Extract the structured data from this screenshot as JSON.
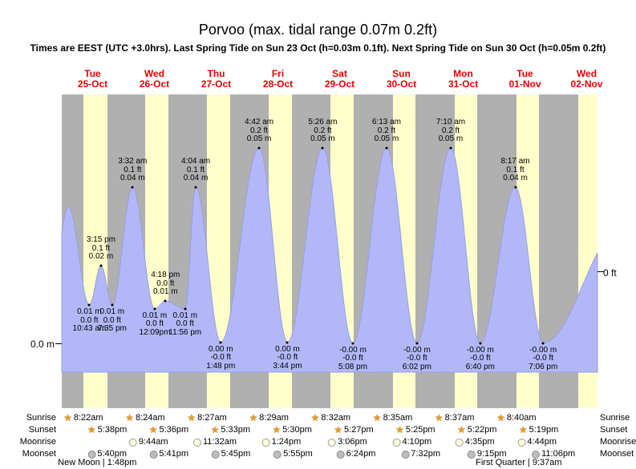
{
  "title": "Porvoo (max. tidal range 0.07m 0.2ft)",
  "subtitle": "Times are EEST (UTC +3.0hrs). Last Spring Tide on Sun 23 Oct (h=0.03m 0.1ft). Next Spring Tide on Sun 30 Oct (h=0.05m 0.2ft)",
  "axes": {
    "left_label": "0.0 m",
    "right_label": "0 ft"
  },
  "days": [
    {
      "weekday": "Tue",
      "date": "25-Oct"
    },
    {
      "weekday": "Wed",
      "date": "26-Oct"
    },
    {
      "weekday": "Thu",
      "date": "27-Oct"
    },
    {
      "weekday": "Fri",
      "date": "28-Oct"
    },
    {
      "weekday": "Sat",
      "date": "29-Oct"
    },
    {
      "weekday": "Sun",
      "date": "30-Oct"
    },
    {
      "weekday": "Mon",
      "date": "31-Oct"
    },
    {
      "weekday": "Tue",
      "date": "01-Nov"
    },
    {
      "weekday": "Wed",
      "date": "02-Nov"
    }
  ],
  "chart_data": {
    "type": "area",
    "series_name": "tide height",
    "y_unit": "m",
    "max_tidal_range_m": 0.07,
    "colors": {
      "fill": "#b2b8f7",
      "stroke": "#959ee8",
      "night_band": "#b0b0b0",
      "day_band": "#ffffcc",
      "date_text": "#e60000"
    },
    "events": [
      {
        "day": 0,
        "type": "low",
        "time": "10:43 am",
        "height_m": 0.01,
        "draw_m": 0.01,
        "lines": [
          "0.01 m",
          "0.0 ft",
          "10:43 am"
        ]
      },
      {
        "day": 0,
        "type": "high",
        "time": "3:15 pm",
        "height_m": 0.02,
        "draw_m": 0.02,
        "lines": [
          "3:15 pm",
          "0.1 ft",
          "0.02 m"
        ]
      },
      {
        "day": 0,
        "type": "low",
        "time": "7:35 pm",
        "height_m": 0.01,
        "draw_m": 0.01,
        "lines": [
          "0.01 m",
          "0.0 ft",
          "7:35 pm"
        ]
      },
      {
        "day": 1,
        "type": "high",
        "time": "3:32 am",
        "height_m": 0.04,
        "draw_m": 0.04,
        "lines": [
          "3:32 am",
          "0.1 ft",
          "0.04 m"
        ]
      },
      {
        "day": 1,
        "type": "low",
        "time": "12:09 pm",
        "height_m": 0.01,
        "draw_m": 0.009,
        "lines": [
          "0.01 m",
          "0.0 ft",
          "12:09pm"
        ]
      },
      {
        "day": 1,
        "type": "high",
        "time": "4:18 pm",
        "height_m": 0.01,
        "draw_m": 0.011,
        "lines": [
          "4:18 pm",
          "0.0 ft",
          "0.01 m"
        ]
      },
      {
        "day": 1,
        "type": "low",
        "time": "11:56 pm",
        "height_m": 0.01,
        "draw_m": 0.009,
        "lines": [
          "0.01 m",
          "0.0 ft",
          "11:56 pm"
        ]
      },
      {
        "day": 2,
        "type": "high",
        "time": "4:04 am",
        "height_m": 0.04,
        "draw_m": 0.04,
        "lines": [
          "4:04 am",
          "0.1 ft",
          "0.04 m"
        ]
      },
      {
        "day": 2,
        "type": "low",
        "time": "1:48 pm",
        "height_m": 0,
        "draw_m": 0.0005,
        "lines": [
          "0.00 m",
          "-0.0 ft",
          "1:48 pm"
        ]
      },
      {
        "day": 3,
        "type": "high",
        "time": "4:42 am",
        "height_m": 0.05,
        "draw_m": 0.05,
        "lines": [
          "4:42 am",
          "0.2 ft",
          "0.05 m"
        ]
      },
      {
        "day": 3,
        "type": "low",
        "time": "3:44 pm",
        "height_m": 0,
        "draw_m": 0.0005,
        "lines": [
          "0.00 m",
          "-0.0 ft",
          "3:44 pm"
        ]
      },
      {
        "day": 4,
        "type": "high",
        "time": "5:26 am",
        "height_m": 0.05,
        "draw_m": 0.05,
        "lines": [
          "5:26 am",
          "0.2 ft",
          "0.05 m"
        ]
      },
      {
        "day": 4,
        "type": "low",
        "time": "5:08 pm",
        "height_m": 0,
        "draw_m": 0.0003,
        "lines": [
          "-0.00 m",
          "-0.0 ft",
          "5:08 pm"
        ]
      },
      {
        "day": 5,
        "type": "high",
        "time": "6:13 am",
        "height_m": 0.05,
        "draw_m": 0.05,
        "lines": [
          "6:13 am",
          "0.2 ft",
          "0.05 m"
        ]
      },
      {
        "day": 5,
        "type": "low",
        "time": "6:02 pm",
        "height_m": 0,
        "draw_m": 0.0003,
        "lines": [
          "-0.00 m",
          "-0.0 ft",
          "6:02 pm"
        ]
      },
      {
        "day": 6,
        "type": "high",
        "time": "7:10 am",
        "height_m": 0.05,
        "draw_m": 0.05,
        "lines": [
          "7:10 am",
          "0.2 ft",
          "0.05 m"
        ]
      },
      {
        "day": 6,
        "type": "low",
        "time": "6:40 pm",
        "height_m": 0,
        "draw_m": 0.0003,
        "lines": [
          "-0.00 m",
          "-0.0 ft",
          "6:40 pm"
        ]
      },
      {
        "day": 7,
        "type": "high",
        "time": "8:17 am",
        "height_m": 0.04,
        "draw_m": 0.04,
        "lines": [
          "8:17 am",
          "0.1 ft",
          "0.04 m"
        ]
      },
      {
        "day": 7,
        "type": "low",
        "time": "7:06 pm",
        "height_m": 0,
        "draw_m": 0.0003,
        "lines": [
          "-0.00 m",
          "-0.0 ft",
          "7:06 pm"
        ]
      }
    ]
  },
  "almanac": {
    "rows": [
      {
        "label": "Sunrise",
        "icon": "sunrise-star-icon",
        "entries": [
          {
            "day": 0,
            "time": "8:22am"
          },
          {
            "day": 1,
            "time": "8:24am"
          },
          {
            "day": 2,
            "time": "8:27am"
          },
          {
            "day": 3,
            "time": "8:29am"
          },
          {
            "day": 4,
            "time": "8:32am"
          },
          {
            "day": 5,
            "time": "8:35am"
          },
          {
            "day": 6,
            "time": "8:37am"
          },
          {
            "day": 7,
            "time": "8:40am"
          }
        ]
      },
      {
        "label": "Sunset",
        "icon": "sunset-star-icon",
        "entries": [
          {
            "day": 0,
            "time": "5:38pm"
          },
          {
            "day": 1,
            "time": "5:36pm"
          },
          {
            "day": 2,
            "time": "5:33pm"
          },
          {
            "day": 3,
            "time": "5:30pm"
          },
          {
            "day": 4,
            "time": "5:27pm"
          },
          {
            "day": 5,
            "time": "5:25pm"
          },
          {
            "day": 6,
            "time": "5:22pm"
          },
          {
            "day": 7,
            "time": "5:19pm"
          }
        ]
      },
      {
        "label": "Moonrise",
        "icon": "moonrise-icon",
        "entries": [
          {
            "day": 1,
            "time": "9:44am"
          },
          {
            "day": 2,
            "time": "11:32am"
          },
          {
            "day": 3,
            "time": "1:24pm"
          },
          {
            "day": 4,
            "time": "3:06pm"
          },
          {
            "day": 5,
            "time": "4:10pm"
          },
          {
            "day": 6,
            "time": "4:35pm"
          },
          {
            "day": 7,
            "time": "4:44pm"
          }
        ]
      },
      {
        "label": "Moonset",
        "icon": "moonset-icon",
        "entries": [
          {
            "day": 0,
            "time": "5:40pm"
          },
          {
            "day": 1,
            "time": "5:41pm"
          },
          {
            "day": 2,
            "time": "5:45pm"
          },
          {
            "day": 3,
            "time": "5:55pm"
          },
          {
            "day": 4,
            "time": "6:24pm"
          },
          {
            "day": 5,
            "time": "7:32pm"
          },
          {
            "day": 6,
            "time": "9:15pm"
          },
          {
            "day": 7,
            "time": "11:06pm"
          }
        ]
      }
    ],
    "phases": [
      {
        "label": "New Moon | 1:48pm",
        "name": "New Moon",
        "time": "1:48pm",
        "day": 0
      },
      {
        "label": "First Quarter | 9:37am",
        "name": "First Quarter",
        "time": "9:37am",
        "day": 7
      }
    ]
  }
}
